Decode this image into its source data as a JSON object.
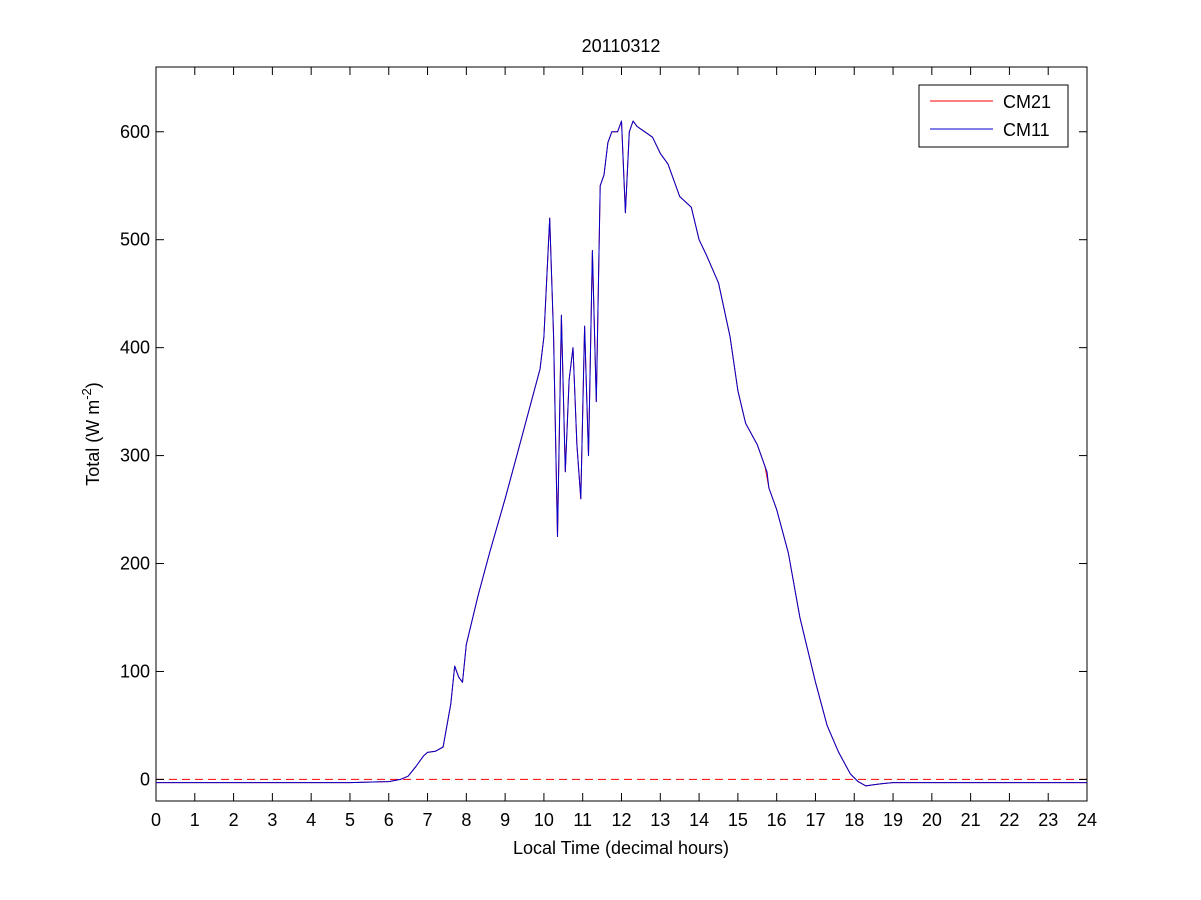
{
  "chart_data": {
    "type": "line",
    "title": "20110312",
    "xlabel": "Local Time (decimal hours)",
    "ylabel_main": "Total (W m",
    "ylabel_sup": "-2",
    "ylabel_tail": ")",
    "xlim": [
      0,
      24
    ],
    "ylim": [
      -20,
      660
    ],
    "xticks": [
      "0",
      "1",
      "2",
      "3",
      "4",
      "5",
      "6",
      "7",
      "8",
      "9",
      "10",
      "11",
      "12",
      "13",
      "14",
      "15",
      "16",
      "17",
      "18",
      "19",
      "20",
      "21",
      "22",
      "23",
      "24"
    ],
    "xtick_values": [
      0,
      1,
      2,
      3,
      4,
      5,
      6,
      7,
      8,
      9,
      10,
      11,
      12,
      13,
      14,
      15,
      16,
      17,
      18,
      19,
      20,
      21,
      22,
      23,
      24
    ],
    "yticks": [
      "0",
      "100",
      "200",
      "300",
      "400",
      "500",
      "600"
    ],
    "ytick_values": [
      0,
      100,
      200,
      300,
      400,
      500,
      600
    ],
    "grid": false,
    "legend_position": "top-right",
    "zero_line": {
      "y": 0,
      "style": "dashed",
      "color": "#ff0000"
    },
    "series": [
      {
        "name": "CM21",
        "color": "#ff0000",
        "x": [
          0,
          1,
          2,
          3,
          4,
          5,
          6,
          6.3,
          6.5,
          6.7,
          6.9,
          7.0,
          7.2,
          7.4,
          7.6,
          7.7,
          7.8,
          7.9,
          8.0,
          8.3,
          8.6,
          9.0,
          9.3,
          9.6,
          9.9,
          10.0,
          10.15,
          10.25,
          10.35,
          10.45,
          10.55,
          10.65,
          10.75,
          10.85,
          10.95,
          11.05,
          11.15,
          11.25,
          11.35,
          11.45,
          11.55,
          11.65,
          11.75,
          11.9,
          12.0,
          12.1,
          12.2,
          12.3,
          12.4,
          12.6,
          12.8,
          13.0,
          13.2,
          13.5,
          13.8,
          14.0,
          14.2,
          14.5,
          14.8,
          15.0,
          15.2,
          15.5,
          15.7,
          15.75,
          15.8,
          16.0,
          16.3,
          16.6,
          17.0,
          17.3,
          17.6,
          17.9,
          18.1,
          18.3,
          18.5,
          18.7,
          19,
          20,
          21,
          22,
          23,
          24
        ],
        "y": [
          -3,
          -3,
          -3,
          -3,
          -3,
          -3,
          -2,
          0,
          3,
          12,
          22,
          25,
          26,
          30,
          70,
          105,
          95,
          90,
          125,
          170,
          210,
          260,
          300,
          340,
          380,
          410,
          520,
          410,
          225,
          430,
          285,
          370,
          400,
          310,
          260,
          420,
          300,
          490,
          350,
          550,
          560,
          590,
          600,
          600,
          610,
          525,
          600,
          610,
          605,
          600,
          595,
          580,
          570,
          540,
          530,
          500,
          485,
          460,
          410,
          360,
          330,
          310,
          290,
          280,
          270,
          250,
          210,
          150,
          90,
          50,
          25,
          5,
          -2,
          -6,
          -5,
          -4,
          -3,
          -3,
          -3,
          -3,
          -3,
          -3
        ]
      },
      {
        "name": "CM11",
        "color": "#0000cc",
        "x": [
          0,
          1,
          2,
          3,
          4,
          5,
          6,
          6.3,
          6.5,
          6.7,
          6.9,
          7.0,
          7.2,
          7.4,
          7.6,
          7.7,
          7.8,
          7.9,
          8.0,
          8.3,
          8.6,
          9.0,
          9.3,
          9.6,
          9.9,
          10.0,
          10.15,
          10.25,
          10.35,
          10.45,
          10.55,
          10.65,
          10.75,
          10.85,
          10.95,
          11.05,
          11.15,
          11.25,
          11.35,
          11.45,
          11.55,
          11.65,
          11.75,
          11.9,
          12.0,
          12.1,
          12.2,
          12.3,
          12.4,
          12.6,
          12.8,
          13.0,
          13.2,
          13.5,
          13.8,
          14.0,
          14.2,
          14.5,
          14.8,
          15.0,
          15.2,
          15.5,
          15.7,
          15.75,
          15.8,
          16.0,
          16.3,
          16.6,
          17.0,
          17.3,
          17.6,
          17.9,
          18.1,
          18.3,
          18.5,
          18.7,
          19,
          20,
          21,
          22,
          23,
          24
        ],
        "y": [
          -3,
          -3,
          -3,
          -3,
          -3,
          -3,
          -2,
          0,
          3,
          12,
          22,
          25,
          26,
          30,
          70,
          105,
          95,
          90,
          125,
          170,
          210,
          260,
          300,
          340,
          380,
          410,
          520,
          410,
          225,
          430,
          285,
          370,
          400,
          310,
          260,
          420,
          300,
          490,
          350,
          550,
          560,
          590,
          600,
          600,
          610,
          525,
          600,
          610,
          605,
          600,
          595,
          580,
          570,
          540,
          530,
          500,
          485,
          460,
          410,
          360,
          330,
          310,
          290,
          285,
          270,
          250,
          210,
          150,
          90,
          50,
          25,
          5,
          -2,
          -6,
          -5,
          -4,
          -3,
          -3,
          -3,
          -3,
          -3,
          -3
        ]
      }
    ]
  }
}
